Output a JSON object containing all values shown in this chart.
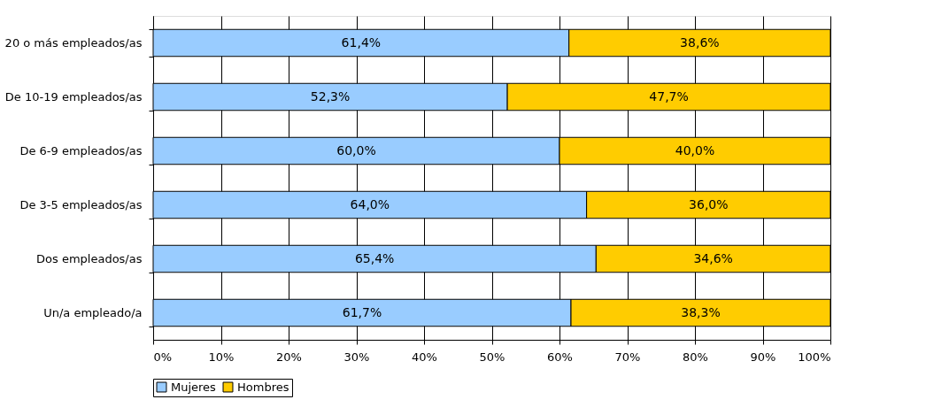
{
  "chart_data": {
    "type": "bar",
    "orientation": "horizontal",
    "stacked": true,
    "categories": [
      "20 o más empleados/as",
      "De 10-19 empleados/as",
      "De 6-9 empleados/as",
      "De 3-5 empleados/as",
      "Dos empleados/as",
      "Un/a empleado/a"
    ],
    "series": [
      {
        "name": "Mujeres",
        "color": "#99ccff",
        "values": [
          61.4,
          52.3,
          60.0,
          64.0,
          65.4,
          61.7
        ],
        "value_labels": [
          "61,4%",
          "52,3%",
          "60,0%",
          "64,0%",
          "65,4%",
          "61,7%"
        ]
      },
      {
        "name": "Hombres",
        "color": "#ffcc00",
        "values": [
          38.6,
          47.7,
          40.0,
          36.0,
          34.6,
          38.3
        ],
        "value_labels": [
          "38,6%",
          "47,7%",
          "40,0%",
          "36,0%",
          "34,6%",
          "38,3%"
        ]
      }
    ],
    "xlim": [
      0,
      100
    ],
    "xticks": [
      {
        "value": 0,
        "label": "0%"
      },
      {
        "value": 10,
        "label": "10%"
      },
      {
        "value": 20,
        "label": "20%"
      },
      {
        "value": 30,
        "label": "30%"
      },
      {
        "value": 40,
        "label": "40%"
      },
      {
        "value": 50,
        "label": "50%"
      },
      {
        "value": 60,
        "label": "60%"
      },
      {
        "value": 70,
        "label": "70%"
      },
      {
        "value": 80,
        "label": "80%"
      },
      {
        "value": 90,
        "label": "90%"
      },
      {
        "value": 100,
        "label": "100%"
      }
    ],
    "grid": "x",
    "legend": "bottom"
  }
}
